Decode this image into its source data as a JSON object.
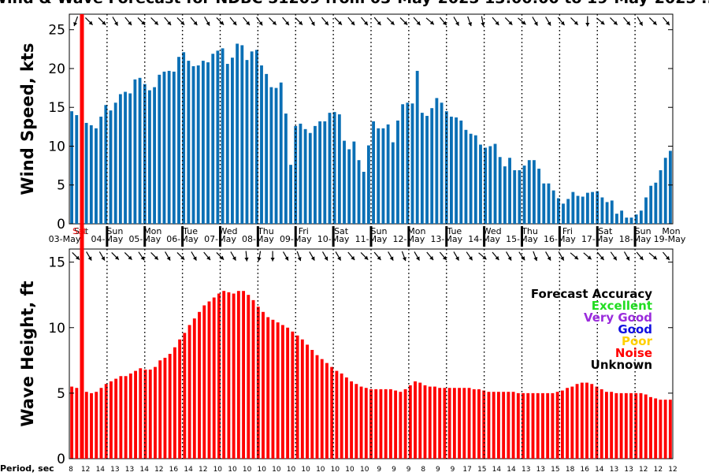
{
  "chart_data": [
    {
      "type": "bar",
      "title": "Wind & Wave Forecast for NDBC 51209 from 03-May-2025 13:00:00 to 19-May-2025 ...",
      "ylabel": "Wind Speed, kts",
      "ylim": [
        0,
        27
      ],
      "yticks": [
        "0",
        "5",
        "10",
        "15",
        "20",
        "25"
      ],
      "bar_color": "#0a6fb5",
      "values": [
        14.5,
        14,
        0,
        13,
        12.7,
        12.3,
        13.8,
        15.3,
        14.6,
        15.6,
        16.7,
        17,
        16.8,
        18.6,
        18.8,
        18,
        17.2,
        17.6,
        19.2,
        19.6,
        19.7,
        19.6,
        21.5,
        22.1,
        21,
        20.3,
        20.4,
        21,
        20.8,
        21.9,
        22.3,
        22.6,
        20.6,
        21.4,
        23.2,
        23,
        21.1,
        22.2,
        22.4,
        20.4,
        19.3,
        17.6,
        17.5,
        18.2,
        14.2,
        7.6,
        12.6,
        12.9,
        12.2,
        11.7,
        12.6,
        13.2,
        13.2,
        14.3,
        14.4,
        14.1,
        10.7,
        9.6,
        10.6,
        8.2,
        6.7,
        10.1,
        13.2,
        12.3,
        12.3,
        12.8,
        10.5,
        13.3,
        15.4,
        15.6,
        15.5,
        19.7,
        14.3,
        13.9,
        14.9,
        16.2,
        15.6,
        14.5,
        13.8,
        13.7,
        13.3,
        12.1,
        11.6,
        11.4,
        10.2,
        9.8,
        10,
        10.3,
        8.6,
        7.4,
        8.5,
        6.9,
        6.9,
        7.5,
        8.2,
        8.2,
        7.1,
        5.2,
        5.2,
        4.3,
        3.3,
        2.6,
        3.2,
        4.1,
        3.6,
        3.5,
        4,
        4.1,
        4.2,
        3.4,
        2.8,
        3,
        1.3,
        1.7,
        0.8,
        0.8,
        1.2,
        1.7,
        3.4,
        4.9,
        5.3,
        6.9,
        8.5,
        9.4
      ]
    },
    {
      "type": "bar",
      "ylabel": "Wave Height, ft",
      "ylim": [
        0,
        16
      ],
      "yticks": [
        "0",
        "5",
        "10",
        "15"
      ],
      "bar_color": "#ff0000",
      "values": [
        5.5,
        5.4,
        0,
        5.1,
        5,
        5.1,
        5.4,
        5.7,
        5.9,
        6.1,
        6.3,
        6.3,
        6.5,
        6.7,
        6.9,
        6.8,
        6.8,
        7,
        7.5,
        7.7,
        8,
        8.5,
        9.1,
        9.6,
        10.2,
        10.7,
        11.2,
        11.7,
        12,
        12.3,
        12.6,
        12.8,
        12.7,
        12.6,
        12.8,
        12.8,
        12.5,
        12.1,
        11.6,
        11.2,
        10.8,
        10.6,
        10.4,
        10.2,
        10,
        9.7,
        9.4,
        9.1,
        8.7,
        8.3,
        7.9,
        7.6,
        7.3,
        7,
        6.7,
        6.5,
        6.2,
        5.9,
        5.7,
        5.5,
        5.4,
        5.3,
        5.3,
        5.3,
        5.3,
        5.3,
        5.2,
        5.1,
        5.3,
        5.6,
        5.9,
        5.8,
        5.6,
        5.5,
        5.5,
        5.4,
        5.4,
        5.4,
        5.4,
        5.4,
        5.4,
        5.4,
        5.3,
        5.3,
        5.2,
        5.1,
        5.1,
        5.1,
        5.1,
        5.1,
        5.1,
        5,
        5,
        5,
        5,
        5,
        5,
        5,
        5,
        5.1,
        5.2,
        5.4,
        5.5,
        5.7,
        5.8,
        5.8,
        5.7,
        5.5,
        5.3,
        5.1,
        5.1,
        5,
        5,
        5,
        5,
        5,
        5,
        4.9,
        4.7,
        4.6,
        4.5,
        4.5,
        4.5
      ]
    }
  ],
  "title": "Wind & Wave Forecast for NDBC 51209 from 03-May-2025 13:00:00 to 19-May-2025 ...",
  "current_marker_color": "#ff0000",
  "days": [
    {
      "dow": "Sat",
      "date": "03-May"
    },
    {
      "dow": "Sun",
      "date": "04-May"
    },
    {
      "dow": "Mon",
      "date": "05-May"
    },
    {
      "dow": "Tue",
      "date": "06-May"
    },
    {
      "dow": "Wed",
      "date": "07-May"
    },
    {
      "dow": "Thu",
      "date": "08-May"
    },
    {
      "dow": "Fri",
      "date": "09-May"
    },
    {
      "dow": "Sat",
      "date": "10-May"
    },
    {
      "dow": "Sun",
      "date": "11-May"
    },
    {
      "dow": "Mon",
      "date": "12-May"
    },
    {
      "dow": "Tue",
      "date": "13-May"
    },
    {
      "dow": "Wed",
      "date": "14-May"
    },
    {
      "dow": "Thu",
      "date": "15-May"
    },
    {
      "dow": "Fri",
      "date": "16-May"
    },
    {
      "dow": "Sat",
      "date": "17-May"
    },
    {
      "dow": "Sun",
      "date": "18-May"
    },
    {
      "dow": "Mon",
      "date": "19-May"
    }
  ],
  "first_day_overlay": "Sat",
  "wind_arrow_angles": [
    200,
    135,
    135,
    150,
    140,
    135,
    135,
    140,
    135,
    140,
    150,
    135,
    140,
    140,
    145,
    135,
    140,
    135,
    150,
    140,
    135,
    140,
    140,
    140,
    135,
    135,
    140,
    130,
    140,
    150,
    160,
    170,
    140,
    135,
    130,
    150,
    150,
    140,
    135,
    180,
    130,
    135,
    140,
    150,
    135,
    140
  ],
  "wave_arrow_angles": [
    135,
    150,
    150,
    135,
    135,
    145,
    135,
    150,
    135,
    150,
    140,
    135,
    150,
    175,
    190,
    180,
    150,
    160,
    150,
    150,
    150,
    140,
    135,
    140,
    150,
    160,
    150,
    140,
    140,
    150,
    145,
    130,
    140,
    150,
    145,
    160,
    150,
    150,
    130,
    130,
    140,
    145,
    150,
    140,
    130,
    140
  ],
  "period_label": "Period, sec",
  "periods": [
    "8",
    "12",
    "14",
    "13",
    "13",
    "14",
    "12",
    "16",
    "14",
    "12",
    "10",
    "10",
    "10",
    "10",
    "10",
    "10",
    "10",
    "10",
    "10",
    "10",
    "10",
    "9",
    "9",
    "9",
    "8",
    "9",
    "9",
    "17",
    "15",
    "14",
    "14",
    "13",
    "13",
    "15",
    "18",
    "16",
    "14",
    "13",
    "13",
    "12",
    "12",
    "12"
  ],
  "legend": {
    "title": "Forecast Accuracy",
    "items": [
      {
        "label": "Excellent",
        "color": "#22dd22"
      },
      {
        "label": "Very Good",
        "color": "#9a2bdc"
      },
      {
        "label": "Good",
        "color": "#1010e0"
      },
      {
        "label": "Poor",
        "color": "#ffd000"
      },
      {
        "label": "Noise",
        "color": "#ff0000"
      },
      {
        "label": "Unknown",
        "color": "#000000"
      }
    ]
  }
}
